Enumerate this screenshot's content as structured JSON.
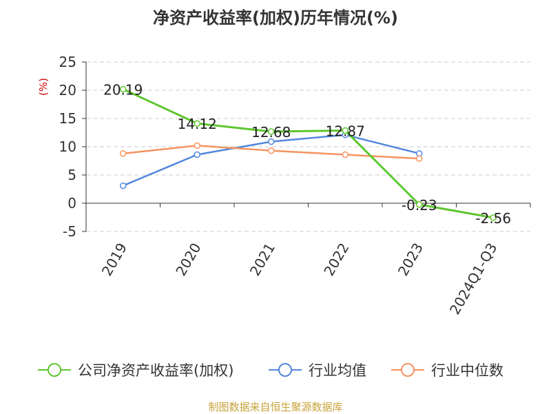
{
  "title": "净资产收益率(加权)历年情况(%)",
  "source": "制图数据来自恒生聚源数据库",
  "chart_data": {
    "type": "line",
    "categories": [
      "2019",
      "2020",
      "2021",
      "2022",
      "2023",
      "2024Q1-Q3"
    ],
    "ylabel": "(%)",
    "ylim": [
      -5,
      25
    ],
    "yticks": [
      -5,
      0,
      5,
      10,
      15,
      20,
      25
    ],
    "grid": true,
    "legend_position": "bottom",
    "series": [
      {
        "name": "公司净资产收益率(加权)",
        "color": "#5ec62e",
        "values": [
          20.19,
          14.12,
          12.68,
          12.87,
          -0.23,
          -2.56
        ],
        "labels": [
          "20.19",
          "14.12",
          "12.68",
          "12.87",
          "-0.23",
          "-2.56"
        ]
      },
      {
        "name": "行业均值",
        "color": "#5287dc",
        "values": [
          3.1,
          8.6,
          10.9,
          12.1,
          8.8,
          null
        ]
      },
      {
        "name": "行业中位数",
        "color": "#f5935e",
        "values": [
          8.8,
          10.2,
          9.3,
          8.6,
          7.9,
          null
        ]
      }
    ]
  }
}
